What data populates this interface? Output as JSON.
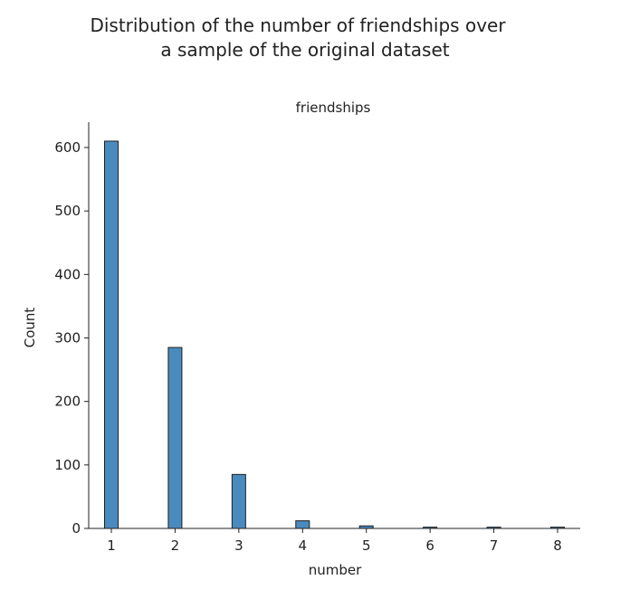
{
  "chart_data": {
    "type": "bar",
    "title": [
      "Distribution of the number of friendships over",
      "a sample of the original dataset"
    ],
    "subtitle": "friendships",
    "xlabel": "number",
    "ylabel": "Count",
    "x": [
      1,
      2,
      3,
      4,
      5,
      6,
      7,
      8
    ],
    "values": [
      610,
      285,
      85,
      12,
      4,
      2,
      2,
      2
    ],
    "xlim": [
      0.7,
      8.4
    ],
    "ylim": [
      0,
      640
    ],
    "xticks": [
      1,
      2,
      3,
      4,
      5,
      6,
      7,
      8
    ],
    "yticks": [
      0,
      100,
      200,
      300,
      400,
      500,
      600
    ],
    "bar_color": "#4a8bbf",
    "grid": false,
    "legend": "none"
  }
}
